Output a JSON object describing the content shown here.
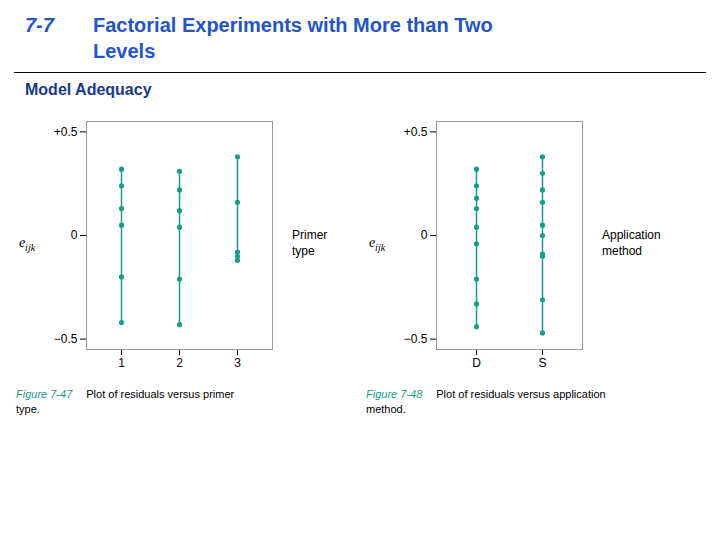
{
  "title": "7-7 Factorial Experiments with More than Two Levels",
  "subtitle": "Model Adequacy",
  "chart_data": [
    {
      "type": "strip",
      "figure_label": "Figure 7-47",
      "caption": "Plot of residuals versus primer type.",
      "y_label": "eijk",
      "x_label": [
        "Primer",
        "type"
      ],
      "categories": [
        "1",
        "2",
        "3"
      ],
      "values": [
        [
          0.32,
          0.24,
          0.13,
          0.05,
          -0.2,
          -0.42
        ],
        [
          0.31,
          0.22,
          0.12,
          0.04,
          -0.21,
          -0.43
        ],
        [
          0.38,
          0.16,
          -0.08,
          -0.1,
          -0.12
        ]
      ],
      "color": "#1a9e8c",
      "ylim": [
        -0.55,
        0.55
      ],
      "yticks": [
        {
          "value": -0.5,
          "label": "−0.5"
        },
        0,
        {
          "value": 0.5,
          "label": "+0.5"
        }
      ]
    },
    {
      "type": "strip",
      "figure_label": "Figure 7-48",
      "caption": "Plot of residuals versus application method.",
      "y_label": "eijk",
      "x_label": [
        "Application",
        "method"
      ],
      "categories": [
        "D",
        "S"
      ],
      "values": [
        [
          0.32,
          0.24,
          0.18,
          0.13,
          0.04,
          -0.04,
          -0.21,
          -0.33,
          -0.44
        ],
        [
          0.38,
          0.3,
          0.22,
          0.16,
          0.05,
          0.0,
          -0.09,
          -0.1,
          -0.31,
          -0.47
        ]
      ],
      "color": "#1a9e8c",
      "ylim": [
        -0.55,
        0.55
      ],
      "yticks": [
        {
          "value": -0.5,
          "label": "−0.5"
        },
        0,
        {
          "value": 0.5,
          "label": "+0.5"
        }
      ]
    }
  ]
}
